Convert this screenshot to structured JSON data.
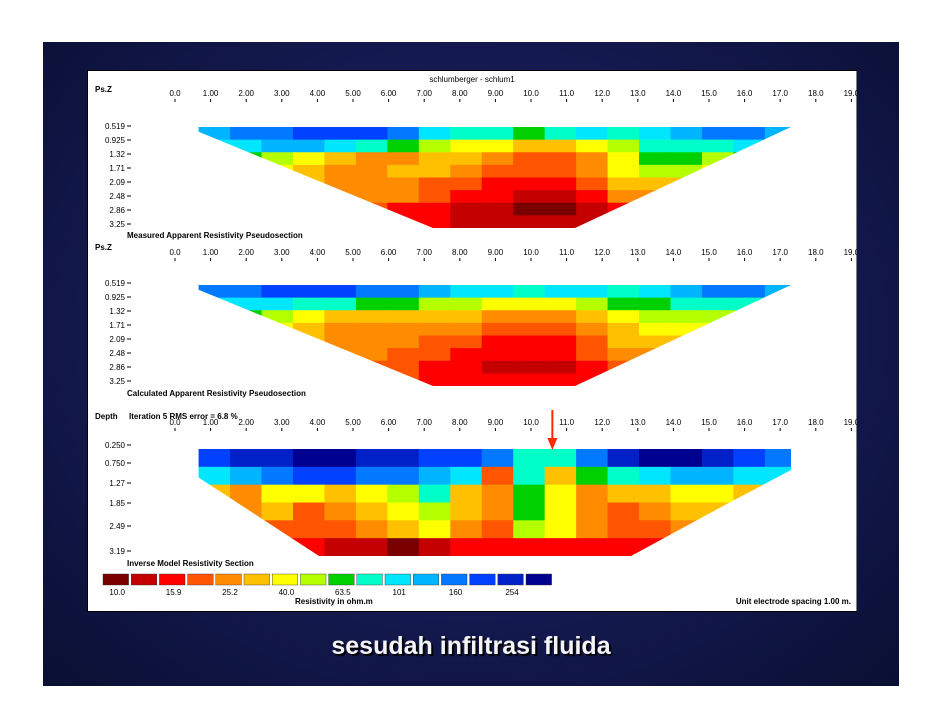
{
  "slide": {
    "caption": "sesudah infiltrasi fluida",
    "background_color": "#141a50"
  },
  "chart_data": {
    "type": "heatmap",
    "title": "schlumberger - schlum1",
    "x_unit": "m.",
    "x_ticks": [
      "0.0",
      "1.00",
      "2.00",
      "3.00",
      "4.00",
      "5.00",
      "6.00",
      "7.00",
      "8.00",
      "9.00",
      "10.0",
      "11.0",
      "12.0",
      "13.0",
      "14.0",
      "15.0",
      "16.0",
      "17.0",
      "18.0",
      "19.0"
    ],
    "panels": [
      {
        "id": "measured",
        "name": "Measured Apparent Resistivity Pseudosection",
        "depth_label": "Ps.Z",
        "y_ticks": [
          "0.519",
          "0.925",
          "1.32",
          "1.71",
          "2.09",
          "2.48",
          "2.86",
          "3.25"
        ],
        "x_range": [
          1.0,
          18.0
        ],
        "rows": [
          [
            11,
            12,
            12,
            13,
            13,
            13,
            12,
            10,
            9,
            9,
            8,
            9,
            10,
            9,
            10,
            11,
            12,
            12,
            11,
            11
          ],
          [
            10,
            10,
            11,
            11,
            10,
            9,
            8,
            7,
            6,
            6,
            5,
            5,
            6,
            7,
            9,
            9,
            9,
            10,
            10,
            10
          ],
          [
            8,
            8,
            7,
            6,
            5,
            4,
            4,
            5,
            5,
            4,
            3,
            3,
            4,
            6,
            8,
            8,
            7,
            8,
            8,
            7
          ],
          [
            7,
            7,
            6,
            5,
            4,
            4,
            5,
            5,
            4,
            3,
            3,
            3,
            4,
            6,
            7,
            7,
            6,
            6,
            6,
            6
          ],
          [
            6,
            6,
            5,
            5,
            4,
            4,
            4,
            3,
            3,
            2,
            2,
            2,
            3,
            5,
            5,
            5,
            5,
            5,
            5,
            5
          ],
          [
            5,
            5,
            5,
            4,
            4,
            4,
            4,
            3,
            2,
            2,
            1,
            1,
            2,
            4,
            4,
            4,
            4,
            4,
            4,
            4
          ],
          [
            4,
            4,
            4,
            4,
            3,
            3,
            2,
            2,
            1,
            1,
            0,
            0,
            1,
            2,
            3,
            3,
            3,
            3,
            3,
            3
          ],
          [
            3,
            3,
            3,
            3,
            3,
            3,
            2,
            2,
            1,
            1,
            1,
            1,
            1,
            2,
            2,
            2,
            2,
            2,
            2,
            2
          ]
        ]
      },
      {
        "id": "calculated",
        "name": "Calculated Apparent Resistivity Pseudosection",
        "depth_label": "Ps.Z",
        "y_ticks": [
          "0.519",
          "0.925",
          "1.32",
          "1.71",
          "2.09",
          "2.48",
          "2.86",
          "3.25"
        ],
        "x_range": [
          1.0,
          18.0
        ],
        "rows": [
          [
            12,
            12,
            13,
            13,
            13,
            12,
            12,
            11,
            10,
            10,
            9,
            10,
            10,
            9,
            10,
            11,
            12,
            12,
            11,
            11
          ],
          [
            10,
            10,
            10,
            9,
            9,
            8,
            8,
            7,
            7,
            6,
            6,
            6,
            7,
            8,
            8,
            9,
            9,
            9,
            9,
            9
          ],
          [
            8,
            8,
            7,
            6,
            5,
            5,
            5,
            5,
            5,
            4,
            4,
            4,
            5,
            6,
            7,
            7,
            7,
            7,
            7,
            7
          ],
          [
            6,
            6,
            6,
            5,
            4,
            4,
            4,
            4,
            4,
            3,
            3,
            3,
            4,
            5,
            6,
            6,
            6,
            6,
            6,
            6
          ],
          [
            5,
            5,
            5,
            5,
            4,
            4,
            4,
            3,
            3,
            2,
            2,
            2,
            3,
            5,
            5,
            5,
            5,
            5,
            5,
            5
          ],
          [
            4,
            4,
            4,
            4,
            4,
            4,
            3,
            3,
            2,
            2,
            2,
            2,
            3,
            4,
            4,
            4,
            4,
            4,
            4,
            4
          ],
          [
            4,
            4,
            4,
            4,
            3,
            3,
            3,
            2,
            2,
            1,
            1,
            1,
            2,
            3,
            3,
            3,
            3,
            3,
            3,
            3
          ],
          [
            3,
            3,
            3,
            3,
            3,
            3,
            3,
            2,
            2,
            2,
            2,
            2,
            2,
            3,
            3,
            3,
            3,
            3,
            3,
            3
          ]
        ]
      },
      {
        "id": "inverse",
        "name": "Inverse Model Resistivity Section",
        "depth_label": "Depth",
        "subtitle": "Iteration 5 RMS error = 6.8 %",
        "y_ticks": [
          "0.250",
          "0.750",
          "1.27",
          "1.85",
          "2.49",
          "3.19"
        ],
        "x_range": [
          1.0,
          18.0
        ],
        "rows": [
          [
            13,
            14,
            14,
            15,
            15,
            14,
            14,
            13,
            13,
            12,
            9,
            9,
            12,
            14,
            15,
            15,
            14,
            13,
            12,
            12
          ],
          [
            10,
            11,
            12,
            13,
            13,
            12,
            12,
            11,
            10,
            3,
            9,
            5,
            8,
            9,
            10,
            11,
            11,
            10,
            10,
            9
          ],
          [
            5,
            4,
            6,
            6,
            5,
            6,
            7,
            9,
            5,
            4,
            8,
            6,
            4,
            5,
            5,
            6,
            6,
            5,
            5,
            5
          ],
          [
            4,
            4,
            5,
            3,
            4,
            5,
            6,
            7,
            5,
            4,
            8,
            6,
            4,
            3,
            4,
            5,
            5,
            4,
            4,
            4
          ],
          [
            3,
            4,
            3,
            3,
            3,
            4,
            5,
            6,
            4,
            3,
            7,
            6,
            4,
            3,
            3,
            4,
            4,
            3,
            3,
            3
          ],
          [
            2,
            2,
            2,
            2,
            1,
            1,
            0,
            1,
            2,
            2,
            2,
            2,
            2,
            2,
            2,
            2,
            2,
            2,
            2,
            2
          ]
        ]
      }
    ],
    "arrow_annotation": {
      "x": 10.6,
      "color": "#ff2a00"
    },
    "legend": {
      "colors": [
        "#7a0000",
        "#c40000",
        "#ff0000",
        "#ff5500",
        "#ff8c00",
        "#ffc000",
        "#ffff00",
        "#b4ff00",
        "#00d000",
        "#00ffc8",
        "#00e6ff",
        "#00b4ff",
        "#0078ff",
        "#0040ff",
        "#0020c8",
        "#000090"
      ],
      "labels": [
        "10.0",
        "15.9",
        "25.2",
        "40.0",
        "63.5",
        "101",
        "160",
        "254"
      ],
      "title": "Resistivity in ohm.m"
    },
    "footer_note": "Unit electrode spacing 1.00 m."
  }
}
